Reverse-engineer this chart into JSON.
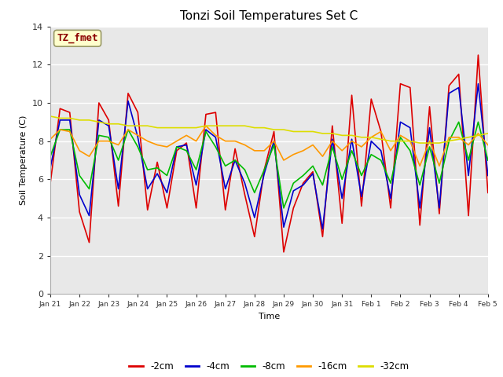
{
  "title": "Tonzi Soil Temperatures Set C",
  "xlabel": "Time",
  "ylabel": "Soil Temperature (C)",
  "ylim": [
    0,
    14
  ],
  "xlim": [
    0,
    15
  ],
  "fig_bg_color": "#ffffff",
  "plot_bg_color": "#e8e8e8",
  "annotation_text": "TZ_fmet",
  "annotation_color": "#8b0000",
  "annotation_bg": "#ffffcc",
  "xtick_labels": [
    "Jan 21",
    "Jan 22",
    "Jan 23",
    "Jan 24",
    "Jan 25",
    "Jan 26",
    "Jan 27",
    "Jan 28",
    "Jan 29",
    "Jan 30",
    "Jan 31",
    "Feb 1",
    "Feb 2",
    "Feb 3",
    "Feb 4",
    "Feb 5"
  ],
  "legend_labels": [
    "-2cm",
    "-4cm",
    "-8cm",
    "-16cm",
    "-32cm"
  ],
  "line_colors": [
    "#dd0000",
    "#0000cc",
    "#00bb00",
    "#ff9900",
    "#dddd00"
  ],
  "series": {
    "neg2cm": [
      5.8,
      9.7,
      9.5,
      4.3,
      2.7,
      10.0,
      9.1,
      4.6,
      10.5,
      9.5,
      4.4,
      6.9,
      4.5,
      7.5,
      7.9,
      4.5,
      9.4,
      9.5,
      4.4,
      7.6,
      5.2,
      3.0,
      6.5,
      8.5,
      2.2,
      4.5,
      5.8,
      6.4,
      3.0,
      8.8,
      3.7,
      10.4,
      4.6,
      10.2,
      8.5,
      4.5,
      11.0,
      10.8,
      3.6,
      9.8,
      4.2,
      10.9,
      11.5,
      4.1,
      12.5,
      5.3
    ],
    "neg4cm": [
      6.6,
      9.1,
      9.1,
      5.2,
      4.1,
      9.1,
      8.8,
      5.5,
      10.1,
      8.2,
      5.5,
      6.3,
      5.3,
      7.7,
      7.8,
      5.7,
      8.6,
      8.2,
      5.5,
      7.0,
      5.8,
      4.0,
      6.3,
      8.0,
      3.5,
      5.4,
      5.7,
      6.3,
      3.4,
      8.1,
      5.0,
      8.1,
      5.1,
      8.0,
      7.5,
      5.0,
      9.0,
      8.7,
      4.5,
      8.7,
      4.5,
      10.5,
      10.8,
      6.2,
      11.0,
      6.2
    ],
    "neg8cm": [
      7.2,
      8.6,
      8.6,
      6.2,
      5.5,
      8.3,
      8.2,
      7.0,
      8.6,
      7.7,
      6.5,
      6.6,
      6.2,
      7.7,
      7.5,
      6.5,
      8.5,
      7.7,
      6.7,
      7.0,
      6.5,
      5.3,
      6.5,
      7.8,
      4.5,
      5.8,
      6.2,
      6.7,
      5.7,
      7.7,
      6.0,
      7.5,
      6.2,
      7.3,
      7.0,
      5.8,
      8.2,
      7.5,
      5.7,
      7.7,
      5.8,
      8.0,
      9.0,
      7.0,
      9.0,
      7.0
    ],
    "neg16cm": [
      8.1,
      8.6,
      8.5,
      7.5,
      7.2,
      8.0,
      8.0,
      7.8,
      8.6,
      8.3,
      8.0,
      7.8,
      7.7,
      8.0,
      8.3,
      8.0,
      8.8,
      8.3,
      8.0,
      8.0,
      7.8,
      7.5,
      7.5,
      8.0,
      7.0,
      7.3,
      7.5,
      7.8,
      7.2,
      8.0,
      7.5,
      8.0,
      7.7,
      8.2,
      8.5,
      7.5,
      8.3,
      8.0,
      6.7,
      8.0,
      6.7,
      8.2,
      8.2,
      7.8,
      8.4,
      7.8
    ],
    "neg32cm": [
      9.3,
      9.2,
      9.2,
      9.1,
      9.1,
      9.0,
      8.9,
      8.9,
      8.8,
      8.8,
      8.8,
      8.7,
      8.7,
      8.7,
      8.7,
      8.7,
      8.8,
      8.8,
      8.8,
      8.8,
      8.8,
      8.7,
      8.7,
      8.6,
      8.6,
      8.5,
      8.5,
      8.5,
      8.4,
      8.4,
      8.3,
      8.3,
      8.2,
      8.2,
      8.1,
      8.0,
      8.0,
      8.0,
      7.9,
      7.9,
      7.9,
      8.0,
      8.1,
      8.2,
      8.3,
      8.4
    ]
  }
}
